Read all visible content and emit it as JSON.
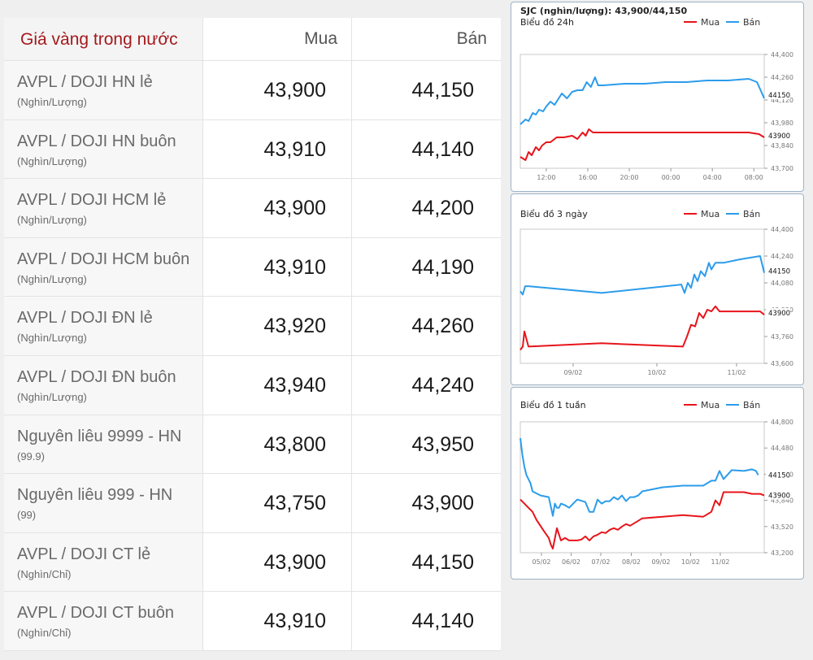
{
  "table": {
    "header": {
      "name": "Giá vàng trong nước",
      "buy": "Mua",
      "sell": "Bán"
    },
    "rows": [
      {
        "name": "AVPL / DOJI HN lẻ",
        "unit": "(Nghìn/Lượng)",
        "buy": "43,900",
        "sell": "44,150"
      },
      {
        "name": "AVPL / DOJI HN buôn",
        "unit": "(Nghìn/Lượng)",
        "buy": "43,910",
        "sell": "44,140"
      },
      {
        "name": "AVPL / DOJI HCM lẻ",
        "unit": "(Nghìn/Lượng)",
        "buy": "43,900",
        "sell": "44,200"
      },
      {
        "name": "AVPL / DOJI HCM buôn",
        "unit": "(Nghìn/Lượng)",
        "buy": "43,910",
        "sell": "44,190"
      },
      {
        "name": "AVPL / DOJI ĐN lẻ",
        "unit": "(Nghìn/Lượng)",
        "buy": "43,920",
        "sell": "44,260"
      },
      {
        "name": "AVPL / DOJI ĐN buôn",
        "unit": "(Nghìn/Lượng)",
        "buy": "43,940",
        "sell": "44,240"
      },
      {
        "name": "Nguyên liêu 9999 - HN",
        "unit": "(99.9)",
        "buy": "43,800",
        "sell": "43,950"
      },
      {
        "name": "Nguyên liêu 999 - HN",
        "unit": "(99)",
        "buy": "43,750",
        "sell": "43,900"
      },
      {
        "name": "AVPL / DOJI CT lẻ",
        "unit": "(Nghìn/Chỉ)",
        "buy": "43,900",
        "sell": "44,150"
      },
      {
        "name": "AVPL / DOJI CT buôn",
        "unit": "(Nghìn/Chỉ)",
        "buy": "43,910",
        "sell": "44,140"
      }
    ]
  },
  "legend": {
    "buy": "Mua",
    "sell": "Bán"
  },
  "colors": {
    "buy": "#e8141b",
    "sell": "#2b9cec",
    "accent": "#a5191d"
  },
  "chart_data": [
    {
      "type": "line",
      "headline": "SJC (nghìn/lượng): 43,900/44,150",
      "title": "Biểu đồ 24h",
      "ylim": [
        43700,
        44400
      ],
      "yticks": [
        "43,700",
        "43,840",
        "43,980",
        "44,120",
        "44,260",
        "44,400"
      ],
      "xlim": [
        0,
        23.5
      ],
      "xticks": [
        {
          "at": 2.5,
          "label": "12:00"
        },
        {
          "at": 6.5,
          "label": "16:00"
        },
        {
          "at": 10.5,
          "label": "20:00"
        },
        {
          "at": 14.5,
          "label": "00:00"
        },
        {
          "at": 18.5,
          "label": "04:00"
        },
        {
          "at": 22.5,
          "label": "08:00"
        }
      ],
      "ref_labels": [
        {
          "text": "44150",
          "y": 44150
        },
        {
          "text": "43900",
          "y": 43900
        }
      ],
      "series": [
        {
          "name": "Mua",
          "x": [
            0,
            0.5,
            0.8,
            1.1,
            1.5,
            1.8,
            2.1,
            2.5,
            2.9,
            3.5,
            4.2,
            5.0,
            5.5,
            6.0,
            6.3,
            6.6,
            7.0,
            7.3,
            8.0,
            10.0,
            12.0,
            14.0,
            16.0,
            18.0,
            20.0,
            22.0,
            23.0,
            23.5
          ],
          "y": [
            43770,
            43750,
            43800,
            43780,
            43830,
            43810,
            43840,
            43860,
            43860,
            43890,
            43890,
            43900,
            43880,
            43920,
            43900,
            43940,
            43920,
            43920,
            43920,
            43920,
            43920,
            43920,
            43920,
            43920,
            43920,
            43920,
            43910,
            43890
          ]
        },
        {
          "name": "Bán",
          "x": [
            0,
            0.5,
            0.8,
            1.2,
            1.5,
            1.8,
            2.2,
            2.5,
            2.9,
            3.3,
            4.0,
            4.5,
            5.0,
            5.5,
            6.0,
            6.4,
            6.8,
            7.2,
            7.5,
            8.0,
            10.0,
            12.0,
            14.0,
            16.0,
            18.0,
            20.0,
            22.0,
            22.8,
            23.5
          ],
          "y": [
            43970,
            44000,
            43990,
            44040,
            44030,
            44060,
            44050,
            44080,
            44110,
            44090,
            44160,
            44130,
            44170,
            44180,
            44180,
            44230,
            44200,
            44260,
            44210,
            44210,
            44220,
            44220,
            44230,
            44230,
            44240,
            44240,
            44250,
            44230,
            44130
          ]
        }
      ]
    },
    {
      "type": "line",
      "title": "Biểu đồ 3 ngày",
      "ylim": [
        43600,
        44400
      ],
      "yticks": [
        "43,600",
        "43,760",
        "43,920",
        "44,080",
        "44,240",
        "44,400"
      ],
      "xlim": [
        0,
        30
      ],
      "xticks": [
        {
          "at": 6.5,
          "label": "09/02"
        },
        {
          "at": 16.8,
          "label": "10/02"
        },
        {
          "at": 26.6,
          "label": "11/02"
        }
      ],
      "ref_labels": [
        {
          "text": "44150",
          "y": 44150
        },
        {
          "text": "43900",
          "y": 43900
        }
      ],
      "series": [
        {
          "name": "Mua",
          "x": [
            0,
            0.3,
            0.5,
            1.0,
            10.0,
            20.0,
            20.5,
            21.0,
            21.5,
            22.0,
            22.5,
            23.0,
            23.5,
            24.0,
            24.5,
            25.0,
            27.0,
            29.5,
            30.0
          ],
          "y": [
            43680,
            43700,
            43790,
            43700,
            43720,
            43700,
            43760,
            43830,
            43820,
            43900,
            43870,
            43920,
            43910,
            43940,
            43910,
            43910,
            43910,
            43910,
            43890
          ]
        },
        {
          "name": "Bán",
          "x": [
            0,
            0.3,
            0.6,
            1.0,
            10.0,
            19.8,
            20.2,
            20.6,
            21.0,
            21.4,
            21.8,
            22.2,
            22.7,
            23.2,
            23.5,
            24.0,
            25.0,
            27.0,
            29.5,
            30.0
          ],
          "y": [
            44030,
            44010,
            44060,
            44060,
            44020,
            44070,
            44020,
            44080,
            44050,
            44130,
            44090,
            44150,
            44120,
            44200,
            44160,
            44200,
            44200,
            44220,
            44240,
            44140
          ]
        }
      ]
    },
    {
      "type": "line",
      "title": "Biểu đồ 1 tuần",
      "ylim": [
        43200,
        44800
      ],
      "yticks": [
        "43,200",
        "43,520",
        "43,840",
        "44,160",
        "44,480",
        "44,800"
      ],
      "xlim": [
        0,
        60
      ],
      "xticks": [
        {
          "at": 5.2,
          "label": "05/02"
        },
        {
          "at": 12.5,
          "label": "06/02"
        },
        {
          "at": 19.8,
          "label": "07/02"
        },
        {
          "at": 27.3,
          "label": "08/02"
        },
        {
          "at": 34.6,
          "label": "09/02"
        },
        {
          "at": 41.9,
          "label": "10/02"
        },
        {
          "at": 49.2,
          "label": "11/02"
        }
      ],
      "ref_labels": [
        {
          "text": "44150",
          "y": 44150
        },
        {
          "text": "43900",
          "y": 43900
        }
      ],
      "series": [
        {
          "name": "Mua",
          "x": [
            0,
            1,
            2,
            3,
            4,
            6,
            7,
            7.5,
            8,
            9,
            10,
            11,
            12,
            13,
            14,
            15,
            16,
            17,
            18,
            19,
            20,
            21,
            22,
            23,
            24,
            25,
            26,
            27,
            28,
            30,
            35,
            40,
            45,
            47,
            48,
            49,
            50,
            55,
            57,
            59,
            60
          ],
          "y": [
            43850,
            43800,
            43750,
            43700,
            43600,
            43450,
            43380,
            43300,
            43250,
            43500,
            43350,
            43380,
            43350,
            43350,
            43350,
            43360,
            43400,
            43350,
            43400,
            43420,
            43450,
            43440,
            43480,
            43500,
            43480,
            43520,
            43550,
            43530,
            43560,
            43620,
            43640,
            43660,
            43640,
            43700,
            43840,
            43780,
            43940,
            43940,
            43920,
            43920,
            43900
          ]
        },
        {
          "name": "Bán",
          "x": [
            0,
            0.5,
            1,
            1.5,
            2,
            2.5,
            3,
            5,
            7,
            8,
            8.5,
            9,
            9.5,
            10,
            11,
            12,
            14,
            16,
            17,
            18,
            19,
            20,
            21,
            22,
            23,
            24,
            25,
            26,
            27,
            28,
            29,
            30,
            32,
            35,
            40,
            45,
            47,
            48,
            49,
            50,
            52,
            55,
            57,
            58,
            58.5
          ],
          "y": [
            44600,
            44400,
            44250,
            44150,
            44100,
            44050,
            43950,
            43900,
            43880,
            43650,
            43800,
            43750,
            43750,
            43800,
            43780,
            43750,
            43850,
            43820,
            43700,
            43700,
            43850,
            43800,
            43830,
            43830,
            43880,
            43850,
            43900,
            43830,
            43880,
            43880,
            43900,
            43950,
            43970,
            44000,
            44020,
            44020,
            44080,
            44080,
            44200,
            44100,
            44210,
            44200,
            44220,
            44200,
            44150
          ]
        }
      ]
    }
  ]
}
